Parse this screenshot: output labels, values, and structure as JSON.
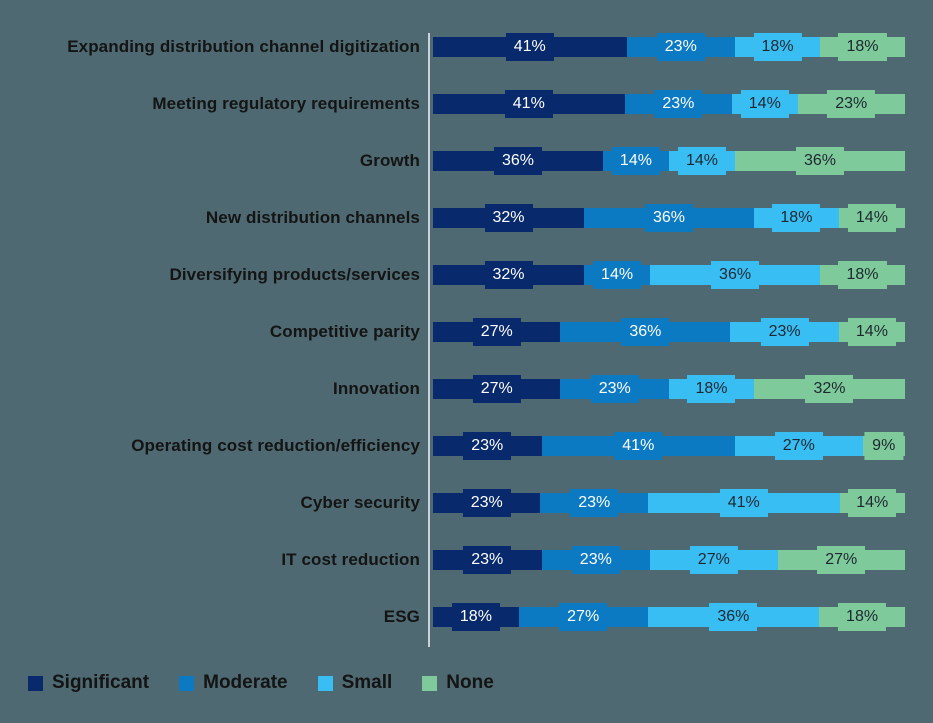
{
  "chart_data": {
    "type": "bar",
    "orientation": "horizontal-stacked-100",
    "title": "",
    "xlabel": "",
    "ylabel": "",
    "grid": false,
    "legend_position": "bottom-left",
    "value_suffix": "%",
    "background_color": "#4E6971",
    "axis_line_color": "#CBD1D8",
    "category_label_color": "#141414",
    "legend_label_color": "#141414",
    "categories": [
      "Expanding distribution channel digitization",
      "Meeting regulatory requirements",
      "Growth",
      "New distribution channels",
      "Diversifying products/services",
      "Competitive parity",
      "Innovation",
      "Operating cost reduction/efficiency",
      "Cyber security",
      "IT cost reduction",
      "ESG"
    ],
    "series": [
      {
        "name": "Significant",
        "color": "#08296B",
        "label_color": "#FFFFFF",
        "values": [
          41,
          41,
          36,
          32,
          32,
          27,
          27,
          23,
          23,
          23,
          18
        ]
      },
      {
        "name": "Moderate",
        "color": "#0B7AC3",
        "label_color": "#FFFFFF",
        "values": [
          23,
          23,
          14,
          36,
          14,
          36,
          23,
          41,
          23,
          23,
          27
        ]
      },
      {
        "name": "Small",
        "color": "#39BEF3",
        "label_color": "#1D2730",
        "values": [
          18,
          14,
          14,
          18,
          36,
          23,
          18,
          27,
          41,
          27,
          36
        ]
      },
      {
        "name": "None",
        "color": "#7FCA9B",
        "label_color": "#1D2730",
        "values": [
          18,
          23,
          36,
          14,
          18,
          14,
          32,
          9,
          14,
          27,
          18
        ]
      }
    ]
  }
}
